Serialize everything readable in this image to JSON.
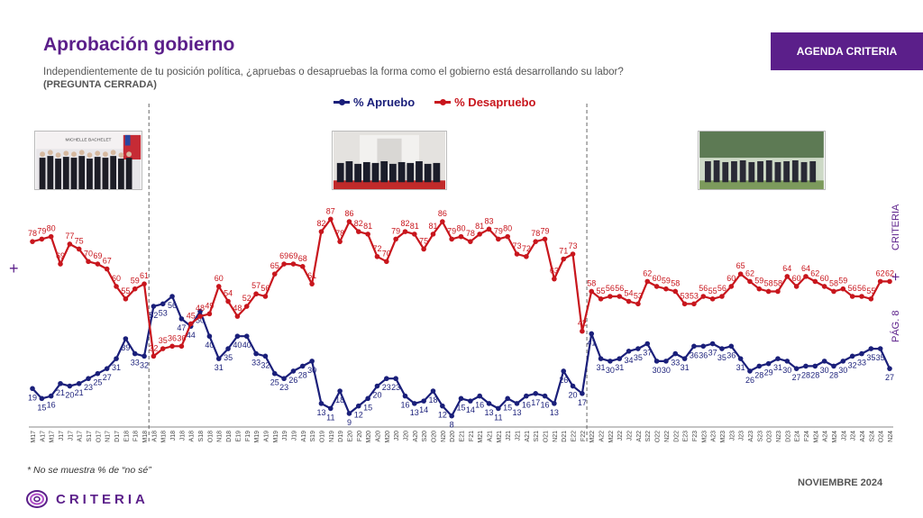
{
  "header": {
    "title": "Aprobación gobierno",
    "subtitle": "Independientemente de tu posición política, ¿apruebas o desapruebas la forma como el gobierno está desarrollando su labor?",
    "subnote": "(PREGUNTA CERRADA)",
    "badge": "AGENDA CRITERIA"
  },
  "footer": {
    "footnote": "* No se muestra % de “no sé”",
    "date": "NOVIEMBRE 2024",
    "brand": "CRITERIA",
    "side_brand": "CRITERIA",
    "page": "PÁG. 8"
  },
  "photos": {
    "first_caption": "MICHELLE BACHELET"
  },
  "colors": {
    "approve": "#1a1f7a",
    "disapprove": "#c8161d",
    "brand": "#5b1f8a"
  },
  "chart_data": {
    "type": "line",
    "title": "",
    "legend": "top-center",
    "grid": false,
    "ylim": [
      0,
      100
    ],
    "x": [
      "M17",
      "A17",
      "M17",
      "J17",
      "J17",
      "A17",
      "S17",
      "O17",
      "N17",
      "D17",
      "E18",
      "F18",
      "M18",
      "A18",
      "M18",
      "J18",
      "J18",
      "A18",
      "S18",
      "O18",
      "N18",
      "D18",
      "E19",
      "F19",
      "M19",
      "A19",
      "M19",
      "J19",
      "J19",
      "A19",
      "S19",
      "O19",
      "N19",
      "D19",
      "E20",
      "F20",
      "M20",
      "A20",
      "M20",
      "J20",
      "J20",
      "A20",
      "S20",
      "O20",
      "N20",
      "D20",
      "E21",
      "F21",
      "M21",
      "A21",
      "M21",
      "J21",
      "J21",
      "A21",
      "S21",
      "O21",
      "N21",
      "D21",
      "E22",
      "F22",
      "M22",
      "A22",
      "M22",
      "J22",
      "J22",
      "A22",
      "S22",
      "O22",
      "N22",
      "D22",
      "E23",
      "F23",
      "M23",
      "A23",
      "M23",
      "J23",
      "J23",
      "A23",
      "S23",
      "O23",
      "N23",
      "D23",
      "E24",
      "F24",
      "M24",
      "A24",
      "M24",
      "J24",
      "J24",
      "A24",
      "S24",
      "O24",
      "N24"
    ],
    "series": [
      {
        "name": "% Apruebo",
        "values": [
          19,
          15,
          16,
          21,
          20,
          21,
          23,
          25,
          27,
          31,
          39,
          33,
          32,
          52,
          53,
          56,
          47,
          44,
          50,
          40,
          31,
          35,
          40,
          40,
          33,
          32,
          25,
          23,
          26,
          28,
          30,
          13,
          11,
          18,
          9,
          12,
          15,
          20,
          23,
          23,
          16,
          13,
          14,
          18,
          12,
          8,
          15,
          14,
          16,
          13,
          11,
          15,
          13,
          16,
          17,
          16,
          13,
          26,
          20,
          17,
          41,
          31,
          30,
          31,
          34,
          35,
          37,
          30,
          30,
          33,
          31,
          36,
          36,
          37,
          35,
          36,
          31,
          26,
          28,
          29,
          31,
          30,
          27,
          28,
          28,
          30,
          28,
          30,
          32,
          33,
          35,
          35,
          27
        ]
      },
      {
        "name": "% Desapruebo",
        "values": [
          78,
          79,
          80,
          69,
          77,
          75,
          70,
          69,
          67,
          60,
          55,
          59,
          61,
          32,
          35,
          36,
          36,
          45,
          48,
          49,
          60,
          54,
          48,
          52,
          57,
          56,
          65,
          69,
          69,
          68,
          61,
          82,
          87,
          78,
          86,
          82,
          81,
          72,
          70,
          79,
          82,
          81,
          75,
          81,
          86,
          79,
          80,
          78,
          81,
          83,
          79,
          80,
          73,
          72,
          78,
          79,
          63,
          71,
          73,
          42,
          58,
          55,
          56,
          56,
          54,
          53,
          62,
          60,
          59,
          58,
          53,
          53,
          56,
          55,
          56,
          60,
          65,
          62,
          59,
          58,
          58,
          64,
          60,
          64,
          62,
          60,
          58,
          59,
          56,
          56,
          55,
          62,
          62
        ]
      }
    ]
  }
}
